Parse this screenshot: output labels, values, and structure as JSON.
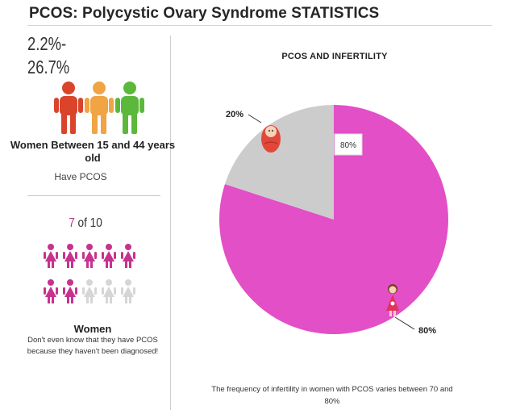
{
  "header": {
    "title": "PCOS: Polycystic Ovary Syndrome STATISTICS"
  },
  "left_panel": {
    "range_line1": "2.2%-",
    "range_line2": "26.7%",
    "people_colors": [
      "#d9442b",
      "#f0a443",
      "#5cb83a"
    ],
    "age_label": "Women Between  15 and 44 years old",
    "have_pcos": "Have PCOS",
    "ratio_num": "7",
    "ratio_rest": " of 10",
    "undiagnosed_count": 7,
    "total_count": 10,
    "women_label": "Women",
    "women_note": "Don't even know that they have PCOS because they haven't been diagnosed!",
    "icon_filled_color": "#c7328f",
    "icon_empty_color": "#d6d6d6"
  },
  "chart_data": {
    "type": "pie",
    "title": "PCOS AND INFERTILITY",
    "slices": [
      {
        "value": 80,
        "label": "80%",
        "color": "#e24fc6",
        "icon": "woman-icon"
      },
      {
        "value": 20,
        "label": "20%",
        "color": "#cccccc",
        "icon": "baby-icon"
      }
    ],
    "inner_label": "80%",
    "caption": "The frequency of infertility in women with PCOS varies between 70 and 80%"
  }
}
